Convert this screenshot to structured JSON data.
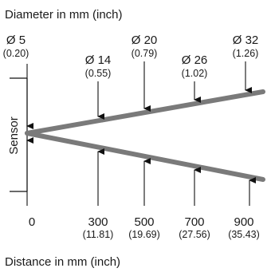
{
  "header": {
    "title": "Diameter in mm (inch)"
  },
  "footer": {
    "title": "Distance in mm (inch)"
  },
  "sensor_label": "Sensor",
  "diameters": [
    {
      "label": "Ø 5",
      "inch": "(0.20)"
    },
    {
      "label": "Ø 14",
      "inch": "(0.55)"
    },
    {
      "label": "Ø 20",
      "inch": "(0.79)"
    },
    {
      "label": "Ø 26",
      "inch": "(1.02)"
    },
    {
      "label": "Ø 32",
      "inch": "(1.26)"
    }
  ],
  "distances": [
    {
      "label": "0",
      "inch": ""
    },
    {
      "label": "300",
      "inch": "(11.81)"
    },
    {
      "label": "500",
      "inch": "(19.69)"
    },
    {
      "label": "700",
      "inch": "(27.56)"
    },
    {
      "label": "900",
      "inch": "(35.43)"
    }
  ],
  "colors": {
    "beam": "#7a7a7a",
    "line": "#111111",
    "text": "#1a1a1a"
  }
}
